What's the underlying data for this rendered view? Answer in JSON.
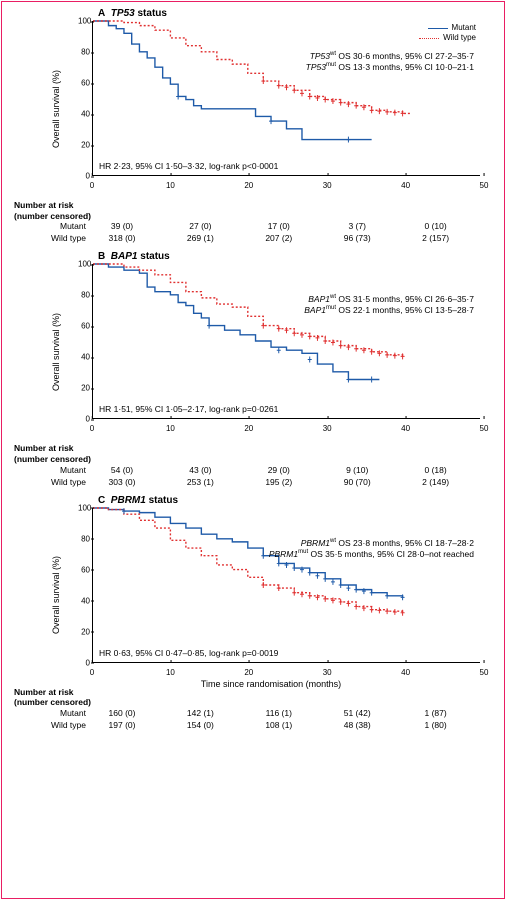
{
  "frame_border_color": "#e91e63",
  "colors": {
    "mutant": "#1e5aa8",
    "wildtype": "#e03030"
  },
  "legend": {
    "mutant": "Mutant",
    "wildtype": "Wild type"
  },
  "ylabel": "Overall survival (%)",
  "xlabel": "Time since randomisation (months)",
  "risk_header": "Number at risk",
  "risk_sub": "(number censored)",
  "xlim": [
    0,
    50
  ],
  "ylim": [
    0,
    100
  ],
  "xtick_step": 10,
  "ytick_step": 20,
  "panels": [
    {
      "id": "A",
      "gene": "TP53",
      "title_suffix": "status",
      "wt_text": "OS 30·6 months, 95% CI 27·2–35·7",
      "mut_text": "OS 13·3 months, 95% CI 10·0–21·1",
      "hr_text": "HR 2·23, 95% CI 1·50–3·32, log-rank p<0·0001",
      "mutant_curve": [
        [
          0,
          100
        ],
        [
          2,
          97
        ],
        [
          3,
          95
        ],
        [
          4,
          92
        ],
        [
          5,
          85
        ],
        [
          6,
          80
        ],
        [
          7,
          76
        ],
        [
          8,
          70
        ],
        [
          9,
          63
        ],
        [
          10,
          59
        ],
        [
          11,
          51
        ],
        [
          12,
          49
        ],
        [
          13,
          45
        ],
        [
          14,
          43
        ],
        [
          16,
          43
        ],
        [
          18,
          43
        ],
        [
          20,
          43
        ],
        [
          21,
          38
        ],
        [
          23,
          35
        ],
        [
          25,
          30
        ],
        [
          27,
          23
        ],
        [
          34,
          23
        ],
        [
          36,
          23
        ]
      ],
      "wildtype_curve": [
        [
          0,
          100
        ],
        [
          2,
          100
        ],
        [
          4,
          99
        ],
        [
          6,
          97
        ],
        [
          8,
          94
        ],
        [
          10,
          89
        ],
        [
          12,
          84
        ],
        [
          14,
          80
        ],
        [
          16,
          75
        ],
        [
          18,
          72
        ],
        [
          20,
          66
        ],
        [
          22,
          61
        ],
        [
          24,
          58
        ],
        [
          26,
          55
        ],
        [
          28,
          51
        ],
        [
          30,
          49
        ],
        [
          32,
          47
        ],
        [
          34,
          45
        ],
        [
          36,
          42
        ],
        [
          38,
          41
        ],
        [
          40,
          40
        ],
        [
          41,
          40
        ]
      ],
      "mutant_censor": [
        [
          11,
          51
        ],
        [
          23,
          35
        ],
        [
          33,
          23
        ]
      ],
      "wildtype_censor": [
        [
          22,
          61
        ],
        [
          24,
          58
        ],
        [
          25,
          57
        ],
        [
          26,
          55
        ],
        [
          27,
          53
        ],
        [
          28,
          51
        ],
        [
          29,
          50
        ],
        [
          30,
          49
        ],
        [
          31,
          48
        ],
        [
          32,
          47
        ],
        [
          33,
          46
        ],
        [
          34,
          45
        ],
        [
          35,
          44
        ],
        [
          36,
          42
        ],
        [
          37,
          41.5
        ],
        [
          38,
          41
        ],
        [
          39,
          40.5
        ],
        [
          40,
          40
        ]
      ],
      "risk": {
        "Mutant": [
          "39 (0)",
          "27 (0)",
          "17 (0)",
          "3 (7)",
          "0 (10)"
        ],
        "Wild type": [
          "318 (0)",
          "269 (1)",
          "207 (2)",
          "96 (73)",
          "2 (157)"
        ]
      },
      "show_legend": true
    },
    {
      "id": "B",
      "gene": "BAP1",
      "title_suffix": "status",
      "wt_text": "OS 31·5 months, 95% CI 26·6–35·7",
      "mut_text": "OS 22·1 months, 95% CI 13·5–28·7",
      "hr_text": "HR 1·51, 95% CI 1·05–2·17, log-rank p=0·0261",
      "mutant_curve": [
        [
          0,
          100
        ],
        [
          2,
          98
        ],
        [
          4,
          96
        ],
        [
          6,
          94
        ],
        [
          7,
          85
        ],
        [
          8,
          82
        ],
        [
          10,
          80
        ],
        [
          11,
          75
        ],
        [
          12,
          73
        ],
        [
          13,
          68
        ],
        [
          14,
          65
        ],
        [
          15,
          60
        ],
        [
          17,
          57
        ],
        [
          19,
          54
        ],
        [
          21,
          50
        ],
        [
          23,
          46
        ],
        [
          25,
          44
        ],
        [
          27,
          42
        ],
        [
          29,
          35
        ],
        [
          31,
          30
        ],
        [
          33,
          25
        ],
        [
          37,
          25
        ]
      ],
      "wildtype_curve": [
        [
          0,
          100
        ],
        [
          2,
          100
        ],
        [
          4,
          98
        ],
        [
          6,
          96
        ],
        [
          8,
          93
        ],
        [
          10,
          88
        ],
        [
          12,
          82
        ],
        [
          14,
          78
        ],
        [
          16,
          74
        ],
        [
          18,
          72
        ],
        [
          20,
          66
        ],
        [
          22,
          60
        ],
        [
          24,
          58
        ],
        [
          26,
          55
        ],
        [
          28,
          53
        ],
        [
          30,
          50
        ],
        [
          32,
          47
        ],
        [
          34,
          45
        ],
        [
          36,
          43
        ],
        [
          38,
          41
        ],
        [
          40,
          40
        ]
      ],
      "mutant_censor": [
        [
          15,
          60
        ],
        [
          24,
          44
        ],
        [
          28,
          38
        ],
        [
          33,
          25
        ],
        [
          36,
          25
        ]
      ],
      "wildtype_censor": [
        [
          22,
          60
        ],
        [
          24,
          58
        ],
        [
          25,
          57
        ],
        [
          26,
          55
        ],
        [
          27,
          54
        ],
        [
          28,
          53
        ],
        [
          29,
          52
        ],
        [
          30,
          50
        ],
        [
          31,
          49
        ],
        [
          32,
          47
        ],
        [
          33,
          46
        ],
        [
          34,
          45
        ],
        [
          35,
          44
        ],
        [
          36,
          43
        ],
        [
          37,
          42
        ],
        [
          38,
          41
        ],
        [
          39,
          40.5
        ],
        [
          40,
          40
        ]
      ],
      "risk": {
        "Mutant": [
          "54 (0)",
          "43 (0)",
          "29 (0)",
          "9 (10)",
          "0 (18)"
        ],
        "Wild type": [
          "303 (0)",
          "253 (1)",
          "195 (2)",
          "90 (70)",
          "2 (149)"
        ]
      },
      "show_legend": false
    },
    {
      "id": "C",
      "gene": "PBRM1",
      "title_suffix": "status",
      "wt_text": "OS 23·8 months, 95% CI 18·7–28·2",
      "mut_text": "OS 35·5 months, 95% CI 28·0–not reached",
      "hr_text": "HR 0·63, 95% CI 0·47–0·85, log-rank p=0·0019",
      "mutant_curve": [
        [
          0,
          100
        ],
        [
          2,
          99
        ],
        [
          4,
          98
        ],
        [
          6,
          97
        ],
        [
          8,
          94
        ],
        [
          10,
          90
        ],
        [
          12,
          87
        ],
        [
          14,
          83
        ],
        [
          16,
          80
        ],
        [
          18,
          78
        ],
        [
          20,
          74
        ],
        [
          22,
          69
        ],
        [
          24,
          64
        ],
        [
          26,
          61
        ],
        [
          28,
          58
        ],
        [
          30,
          54
        ],
        [
          32,
          50
        ],
        [
          34,
          47
        ],
        [
          36,
          45
        ],
        [
          38,
          43
        ],
        [
          40,
          42
        ]
      ],
      "wildtype_curve": [
        [
          0,
          100
        ],
        [
          2,
          99
        ],
        [
          4,
          96
        ],
        [
          6,
          92
        ],
        [
          8,
          87
        ],
        [
          10,
          79
        ],
        [
          12,
          74
        ],
        [
          14,
          69
        ],
        [
          16,
          63
        ],
        [
          18,
          60
        ],
        [
          20,
          55
        ],
        [
          22,
          50
        ],
        [
          24,
          48
        ],
        [
          26,
          45
        ],
        [
          28,
          43
        ],
        [
          30,
          41
        ],
        [
          32,
          39
        ],
        [
          34,
          36
        ],
        [
          36,
          34
        ],
        [
          38,
          33
        ],
        [
          40,
          32
        ]
      ],
      "mutant_censor": [
        [
          4,
          98
        ],
        [
          22,
          69
        ],
        [
          24,
          64
        ],
        [
          25,
          63
        ],
        [
          26,
          61
        ],
        [
          27,
          60
        ],
        [
          28,
          58
        ],
        [
          29,
          56
        ],
        [
          30,
          54
        ],
        [
          31,
          52
        ],
        [
          32,
          50
        ],
        [
          33,
          48
        ],
        [
          34,
          47
        ],
        [
          35,
          46
        ],
        [
          36,
          45
        ],
        [
          38,
          43
        ],
        [
          40,
          42
        ]
      ],
      "wildtype_censor": [
        [
          22,
          50
        ],
        [
          24,
          48
        ],
        [
          26,
          45
        ],
        [
          27,
          44
        ],
        [
          28,
          43
        ],
        [
          29,
          42
        ],
        [
          30,
          41
        ],
        [
          31,
          40
        ],
        [
          32,
          39
        ],
        [
          33,
          38
        ],
        [
          34,
          36
        ],
        [
          35,
          35
        ],
        [
          36,
          34
        ],
        [
          37,
          33.5
        ],
        [
          38,
          33
        ],
        [
          39,
          32.5
        ],
        [
          40,
          32
        ]
      ],
      "show_xlabel": true,
      "risk": {
        "Mutant": [
          "160 (0)",
          "142 (1)",
          "116 (1)",
          "51 (42)",
          "1 (87)"
        ],
        "Wild type": [
          "197 (0)",
          "154 (0)",
          "108 (1)",
          "48 (38)",
          "1 (80)"
        ]
      },
      "show_legend": false
    }
  ]
}
